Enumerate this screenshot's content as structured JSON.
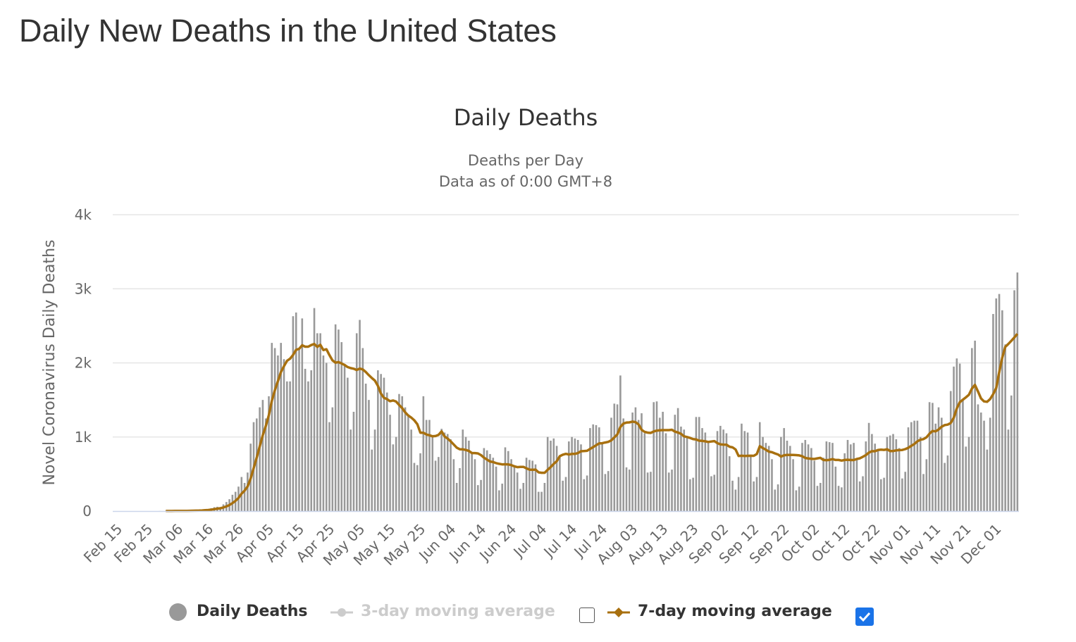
{
  "page_title": "Daily New Deaths in the United States",
  "chart_data": {
    "type": "bar",
    "title": "Daily Deaths",
    "subtitle": [
      "Deaths per Day",
      "Data as of 0:00 GMT+8"
    ],
    "ylabel": "Novel Coronavirus Daily Deaths",
    "xlabel": "",
    "ylim": [
      0,
      4000
    ],
    "y_tick_labels": [
      "0",
      "1k",
      "2k",
      "3k",
      "4k"
    ],
    "y_ticks": [
      0,
      1000,
      2000,
      3000,
      4000
    ],
    "x_tick_labels": [
      "Feb 15",
      "Feb 25",
      "Mar 06",
      "Mar 16",
      "Mar 26",
      "Apr 05",
      "Apr 15",
      "Apr 25",
      "May 05",
      "May 15",
      "May 25",
      "Jun 04",
      "Jun 14",
      "Jun 24",
      "Jul 04",
      "Jul 14",
      "Jul 24",
      "Aug 03",
      "Aug 13",
      "Aug 23",
      "Sep 02",
      "Sep 12",
      "Sep 22",
      "Oct 02",
      "Oct 12",
      "Oct 22",
      "Nov 01",
      "Nov 11",
      "Nov 21",
      "Dec 01"
    ],
    "x_tick_every_days": 10,
    "grid": true,
    "legend_position": "bottom",
    "series": [
      {
        "name": "Daily Deaths",
        "type": "bar",
        "color": "#999999",
        "visible": true,
        "values": [
          0,
          0,
          0,
          0,
          0,
          0,
          0,
          0,
          0,
          0,
          0,
          0,
          0,
          0,
          0,
          1,
          0,
          4,
          2,
          1,
          3,
          3,
          2,
          4,
          4,
          8,
          7,
          10,
          11,
          15,
          24,
          27,
          38,
          52,
          58,
          52,
          90,
          122,
          160,
          220,
          260,
          330,
          460,
          380,
          520,
          910,
          1200,
          1250,
          1400,
          1500,
          1250,
          1550,
          2270,
          2200,
          2100,
          2270,
          2050,
          1750,
          1750,
          2630,
          2680,
          2200,
          2600,
          1920,
          1750,
          1900,
          2740,
          2400,
          2400,
          2100,
          2000,
          1200,
          1400,
          2520,
          2450,
          2280,
          1960,
          1800,
          1100,
          1340,
          2400,
          2580,
          2200,
          1720,
          1500,
          830,
          1100,
          1900,
          1850,
          1800,
          1600,
          1300,
          900,
          1000,
          1580,
          1550,
          1400,
          1300,
          1100,
          650,
          620,
          780,
          1550,
          1230,
          1230,
          1000,
          680,
          730,
          1110,
          1060,
          1040,
          970,
          700,
          380,
          580,
          1100,
          1000,
          950,
          770,
          700,
          350,
          420,
          850,
          820,
          770,
          720,
          600,
          280,
          370,
          860,
          810,
          700,
          610,
          520,
          300,
          380,
          720,
          690,
          680,
          630,
          260,
          260,
          380,
          1000,
          950,
          980,
          880,
          730,
          410,
          460,
          940,
          1000,
          980,
          960,
          900,
          430,
          480,
          1120,
          1170,
          1160,
          1130,
          920,
          500,
          540,
          1260,
          1450,
          1440,
          1830,
          1250,
          590,
          560,
          1330,
          1400,
          1230,
          1320,
          1050,
          520,
          530,
          1470,
          1480,
          1260,
          1340,
          1050,
          520,
          560,
          1300,
          1390,
          1140,
          1100,
          990,
          430,
          450,
          1270,
          1270,
          1120,
          1060,
          930,
          470,
          490,
          1080,
          1150,
          1100,
          1050,
          740,
          410,
          290,
          460,
          1180,
          1080,
          1060,
          750,
          400,
          460,
          1200,
          1000,
          920,
          880,
          700,
          290,
          360,
          1000,
          1120,
          950,
          880,
          700,
          280,
          330,
          920,
          960,
          900,
          850,
          680,
          340,
          380,
          720,
          940,
          930,
          920,
          600,
          340,
          320,
          780,
          960,
          900,
          920,
          700,
          400,
          470,
          940,
          1190,
          1040,
          910,
          820,
          430,
          450,
          1000,
          1020,
          1040,
          970,
          850,
          440,
          530,
          1130,
          1200,
          1220,
          1220,
          1000,
          500,
          700,
          1470,
          1460,
          1180,
          1400,
          1260,
          650,
          750,
          1620,
          1950,
          2060,
          1990,
          1500,
          870,
          1000,
          2200,
          2300,
          1440,
          1330,
          1220,
          830,
          1260,
          2660,
          2870,
          2930,
          2710,
          2250,
          1100,
          1560,
          2980,
          3220
        ]
      },
      {
        "name": "3-day moving average",
        "type": "line",
        "color": "#cccccc",
        "visible": false,
        "window": 3
      },
      {
        "name": "7-day moving average",
        "type": "line",
        "color": "#a8700f",
        "visible": true,
        "window": 7
      }
    ]
  },
  "legend": {
    "daily": "Daily Deaths",
    "ma3": "3-day moving average",
    "ma3_checked": false,
    "ma7": "7-day moving average",
    "ma7_checked": true
  }
}
